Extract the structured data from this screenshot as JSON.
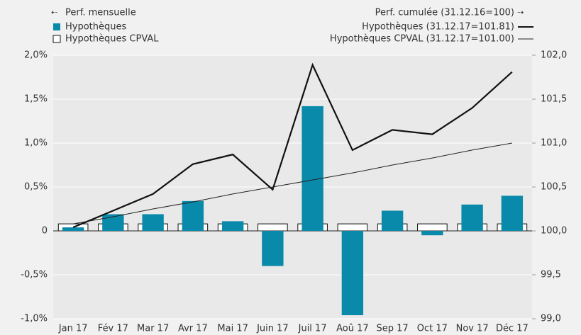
{
  "chart_data": {
    "type": "bar-line",
    "legend_left_title": "Perf. mensuelle",
    "legend_right_title": "Perf. cumulée (31.12.16=100)",
    "categories": [
      "Jan 17",
      "Fév 17",
      "Mar 17",
      "Avr 17",
      "Mai 17",
      "Juin 17",
      "Juil 17",
      "Aoû 17",
      "Sep 17",
      "Oct 17",
      "Nov 17",
      "Déc 17"
    ],
    "series": [
      {
        "name": "Hypothèques",
        "type": "bar",
        "color": "#0a8aaa",
        "values": [
          0.04,
          0.19,
          0.19,
          0.34,
          0.11,
          -0.4,
          1.42,
          -0.96,
          0.23,
          -0.05,
          0.3,
          0.4
        ]
      },
      {
        "name": "Hypothèques CPVAL",
        "type": "bar",
        "color": "#ffffff",
        "values": [
          0.08,
          0.08,
          0.08,
          0.08,
          0.08,
          0.08,
          0.08,
          0.08,
          0.08,
          0.08,
          0.08,
          0.08
        ]
      },
      {
        "name": "Hypothèques (31.12.17=101.81)",
        "type": "line",
        "axis": "y2",
        "color": "#111111",
        "values": [
          100.04,
          100.23,
          100.42,
          100.76,
          100.87,
          100.47,
          101.89,
          100.92,
          101.15,
          101.1,
          101.4,
          101.81
        ]
      },
      {
        "name": "Hypothèques CPVAL (31.12.17=101.00)",
        "type": "line",
        "axis": "y2",
        "color": "#222222",
        "values": [
          100.08,
          100.16,
          100.25,
          100.33,
          100.42,
          100.5,
          100.58,
          100.66,
          100.75,
          100.83,
          100.92,
          101.0
        ]
      }
    ],
    "ylim": [
      -1,
      2
    ],
    "yticks": [
      {
        "value": -1,
        "label": "-1,0%"
      },
      {
        "value": -0.5,
        "label": "-0,5%"
      },
      0,
      {
        "value": 0.5,
        "label": "0,5%"
      },
      {
        "value": 1,
        "label": "1,0%"
      },
      {
        "value": 1.5,
        "label": "1,5%"
      },
      {
        "value": 2,
        "label": "2,0%"
      }
    ],
    "y2lim": [
      99,
      102
    ],
    "y2ticks": [
      {
        "value": 99,
        "label": "99,0"
      },
      {
        "value": 99.5,
        "label": "99,5"
      },
      {
        "value": 100,
        "label": "100,0"
      },
      {
        "value": 100.5,
        "label": "100,5"
      },
      {
        "value": 101,
        "label": "101,0"
      },
      {
        "value": 101.5,
        "label": "101,5"
      },
      {
        "value": 102,
        "label": "102,0"
      }
    ],
    "grid": true
  }
}
